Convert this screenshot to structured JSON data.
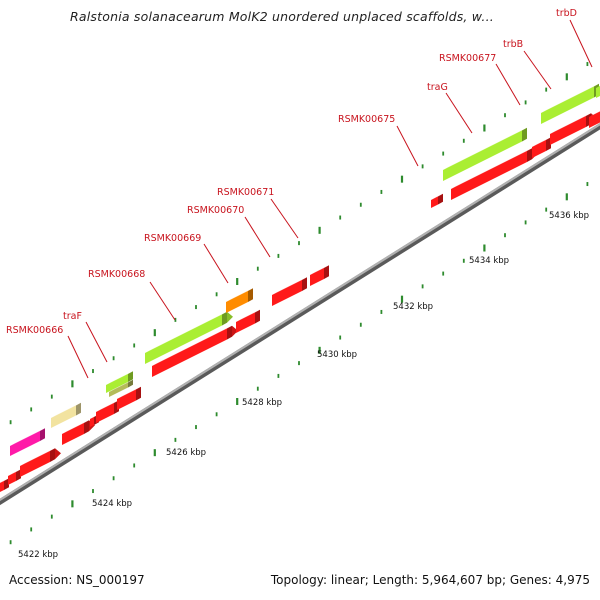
{
  "title": "Ralstonia solanacearum MolK2 unordered unplaced scaffolds, w...",
  "footer": {
    "accession": "Accession: NS_000197",
    "topology": "Topology: linear; Length: 5,964,607 bp; Genes: 4,975"
  },
  "colors": {
    "backbone": "#8a8a8a",
    "tick": "#2e8b2e",
    "label": "#c8141e",
    "red_gene": "#ff1a1a",
    "lime_gene": "#aaee33",
    "orange_gene": "#ff8c00",
    "magenta_gene": "#ff1aa8",
    "khaki_gene": "#f2e3a0",
    "olive_gene": "#b5bb5a"
  },
  "scale_labels": [
    "5422 kbp",
    "5424 kbp",
    "5426 kbp",
    "5428 kbp",
    "5430 kbp",
    "5432 kbp",
    "5434 kbp",
    "5436 kbp"
  ],
  "gene_labels": [
    "RSMK00666",
    "traF",
    "RSMK00668",
    "RSMK00669",
    "RSMK00670",
    "RSMK00671",
    "RSMK00675",
    "traG",
    "RSMK00677",
    "trbB",
    "trbD"
  ]
}
